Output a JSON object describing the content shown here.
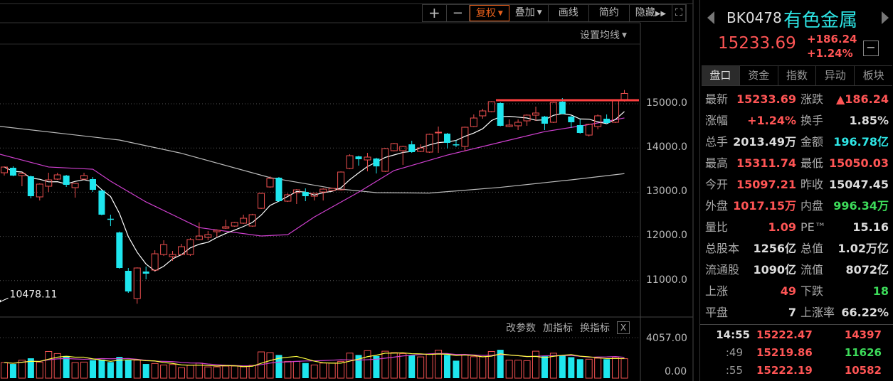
{
  "toolbar": {
    "zoom_in": "+",
    "zoom_out": "−",
    "fuquan": "复权",
    "overlay": "叠加",
    "draw": "画线",
    "simple": "简约",
    "hide": "隐藏",
    "fullscreen_icon": "expand-icon"
  },
  "ma_settings": "设置均线",
  "indicator_bar": {
    "edit_params": "改参数",
    "add_indicator": "加指标",
    "switch_indicator": "换指标",
    "close": "X"
  },
  "price_axis": [
    "15000.0",
    "14000.0",
    "13000.0",
    "12000.0",
    "11000.0"
  ],
  "volume_axis": [
    "4057.00",
    "0.00"
  ],
  "low_annotation": "10478.11",
  "colors": {
    "up": "#f05050",
    "down": "#1ee6ee",
    "ma5": "#ffffff",
    "ma20": "#d040d0",
    "ma60": "#bbbbbb",
    "vol_ma5": "#ffff40",
    "vol_ma10": "#d040d0",
    "drawn_line": "#ff4040"
  },
  "chart_data": {
    "type": "candlestick",
    "y_ticks": [
      15000,
      14000,
      13000,
      12000,
      11000
    ],
    "ylim": [
      10400,
      15450
    ],
    "volume_ylim": [
      0,
      4057
    ],
    "drawn_horizontal_line": 15080,
    "low_label": 10478.11,
    "ohlc": [
      [
        13440,
        13585,
        13376,
        13569
      ],
      [
        13553,
        13585,
        13360,
        13376
      ],
      [
        13376,
        13456,
        13135,
        13424
      ],
      [
        13360,
        13376,
        12861,
        12910
      ],
      [
        12894,
        13199,
        12813,
        13183
      ],
      [
        13135,
        13440,
        13006,
        13279
      ],
      [
        13296,
        13440,
        13279,
        13392
      ],
      [
        13376,
        13392,
        13119,
        13167
      ],
      [
        13103,
        13215,
        12877,
        13199
      ],
      [
        13296,
        13440,
        13279,
        13376
      ],
      [
        13296,
        13344,
        13006,
        13054
      ],
      [
        13038,
        13054,
        12476,
        12492
      ],
      [
        12400,
        12492,
        12234,
        12395
      ],
      [
        12090,
        12110,
        11270,
        11286
      ],
      [
        11222,
        11286,
        10723,
        10755
      ],
      [
        10595,
        11300,
        10478,
        11286
      ],
      [
        11206,
        11318,
        11029,
        11158
      ],
      [
        11238,
        11687,
        11220,
        11607
      ],
      [
        11591,
        11913,
        11559,
        11816
      ],
      [
        11543,
        11671,
        11446,
        11591
      ],
      [
        11591,
        11832,
        11570,
        11768
      ],
      [
        11591,
        11961,
        11559,
        11929
      ],
      [
        11929,
        12315,
        11913,
        12009
      ],
      [
        11977,
        12122,
        11913,
        12041
      ],
      [
        12106,
        12160,
        11993,
        12138
      ],
      [
        12186,
        12379,
        12170,
        12218
      ],
      [
        12234,
        12330,
        12218,
        12315
      ],
      [
        12299,
        12492,
        12283,
        12411
      ],
      [
        12234,
        12510,
        12218,
        12492
      ],
      [
        12636,
        12990,
        12620,
        12974
      ],
      [
        13119,
        13360,
        13100,
        13312
      ],
      [
        13328,
        13344,
        12780,
        12797
      ],
      [
        12797,
        12974,
        12780,
        12942
      ],
      [
        12990,
        13070,
        12733,
        13054
      ],
      [
        13006,
        13087,
        12797,
        12910
      ],
      [
        12910,
        12990,
        12813,
        12974
      ],
      [
        13006,
        13090,
        12813,
        13070
      ],
      [
        13038,
        13103,
        13020,
        13087
      ],
      [
        13054,
        13470,
        13040,
        13456
      ],
      [
        13537,
        13858,
        13520,
        13826
      ],
      [
        13810,
        13826,
        13601,
        13746
      ],
      [
        13730,
        13890,
        13472,
        13794
      ],
      [
        13762,
        13780,
        13424,
        13585
      ],
      [
        13472,
        14003,
        13456,
        13987
      ],
      [
        13939,
        14116,
        13923,
        14100
      ],
      [
        13939,
        14051,
        13617,
        14035
      ],
      [
        14083,
        14164,
        13890,
        13907
      ],
      [
        13923,
        14083,
        13907,
        14003
      ],
      [
        13907,
        14325,
        13890,
        14309
      ],
      [
        14341,
        14485,
        13890,
        14357
      ],
      [
        14325,
        14341,
        13987,
        14116
      ],
      [
        14083,
        14180,
        14019,
        14067
      ],
      [
        14035,
        14485,
        13923,
        14469
      ],
      [
        14485,
        14759,
        14469,
        14678
      ],
      [
        14727,
        14887,
        14662,
        14839
      ],
      [
        14823,
        15060,
        14807,
        15048
      ],
      [
        15016,
        15032,
        14490,
        14502
      ],
      [
        14485,
        14646,
        14470,
        14518
      ],
      [
        14502,
        14646,
        14405,
        14582
      ],
      [
        14614,
        14760,
        14502,
        14743
      ],
      [
        14743,
        14936,
        14614,
        14791
      ],
      [
        14711,
        14727,
        14405,
        14550
      ],
      [
        14582,
        15048,
        14566,
        15032
      ],
      [
        15048,
        15129,
        14760,
        14775
      ],
      [
        14711,
        14730,
        14453,
        14582
      ],
      [
        14518,
        14646,
        14325,
        14341
      ],
      [
        14292,
        14550,
        14260,
        14534
      ],
      [
        14485,
        14759,
        14421,
        14727
      ],
      [
        14662,
        14759,
        14550,
        14566
      ],
      [
        14582,
        15080,
        14566,
        15064
      ],
      [
        15097.21,
        15311.74,
        15050.03,
        15233.69
      ]
    ],
    "volume": [
      1560,
      1420,
      1800,
      1990,
      1610,
      2670,
      2460,
      2220,
      1560,
      1610,
      1800,
      1850,
      1610,
      2130,
      1800,
      1800,
      1420,
      1470,
      1320,
      1370,
      1040,
      1280,
      1510,
      1130,
      1130,
      1210,
      1210,
      1130,
      1280,
      2630,
      2560,
      2320,
      1680,
      1680,
      1510,
      1320,
      1510,
      1510,
      1680,
      2510,
      2320,
      2750,
      2220,
      2700,
      2560,
      2460,
      2320,
      2130,
      2390,
      2800,
      2320,
      1750,
      2320,
      2150,
      2150,
      2670,
      2840,
      1800,
      1800,
      1750,
      2700,
      2200,
      2500,
      2300,
      2100,
      1900,
      1900,
      2000,
      1900,
      2100,
      1950
    ],
    "ma20": [
      [
        0,
        13860
      ],
      [
        5,
        13570
      ],
      [
        10,
        13520
      ],
      [
        12,
        13250
      ],
      [
        16,
        12780
      ],
      [
        22,
        12200
      ],
      [
        29,
        12010
      ],
      [
        32,
        12040
      ],
      [
        35,
        12440
      ],
      [
        40,
        13000
      ],
      [
        44,
        13490
      ],
      [
        50,
        13840
      ],
      [
        56,
        14130
      ],
      [
        61,
        14370
      ],
      [
        66,
        14530
      ],
      [
        70,
        14680
      ]
    ],
    "ma60": [
      [
        0,
        14490
      ],
      [
        13,
        14180
      ],
      [
        20,
        13880
      ],
      [
        30,
        13330
      ],
      [
        37,
        13090
      ],
      [
        42,
        12990
      ],
      [
        48,
        12980
      ],
      [
        56,
        13110
      ],
      [
        64,
        13280
      ],
      [
        70,
        13420
      ]
    ]
  },
  "panel": {
    "code": "BK0478",
    "name": "有色金属",
    "price": "15233.69",
    "change": "+186.24",
    "change_pct": "+1.24%",
    "minus": "−",
    "tabs": [
      "盘口",
      "资金",
      "指数",
      "异动",
      "板块"
    ],
    "rows": [
      {
        "l1": "最新",
        "v1": "15233.69",
        "c1": "red",
        "l2": "涨跌",
        "v2": "▲186.24",
        "c2": "red"
      },
      {
        "l1": "涨幅",
        "v1": "+1.24%",
        "c1": "red",
        "l2": "换手",
        "v2": "1.85%",
        "c2": "wh"
      },
      {
        "l1": "总手",
        "v1": "2013.49万",
        "c1": "wh",
        "l2": "金额",
        "v2": "196.78亿",
        "c2": "cy"
      },
      {
        "l1": "最高",
        "v1": "15311.74",
        "c1": "red",
        "l2": "最低",
        "v2": "15050.03",
        "c2": "red"
      },
      {
        "l1": "今开",
        "v1": "15097.21",
        "c1": "red",
        "l2": "昨收",
        "v2": "15047.45",
        "c2": "wh"
      },
      {
        "l1": "外盘",
        "v1": "1017.15万",
        "c1": "red",
        "l2": "内盘",
        "v2": "996.34万",
        "c2": "grn"
      },
      {
        "l1": "量比",
        "v1": "1.09",
        "c1": "red",
        "l2": "PE™",
        "v2": "15.16",
        "c2": "wh"
      },
      {
        "l1": "总股本",
        "v1": "1256亿",
        "c1": "wh",
        "l2": "总值",
        "v2": "1.02万亿",
        "c2": "wh"
      },
      {
        "l1": "流通股",
        "v1": "1090亿",
        "c1": "wh",
        "l2": "流值",
        "v2": "8072亿",
        "c2": "wh"
      },
      {
        "l1": "上涨",
        "v1": "49",
        "c1": "red",
        "l2": "下跌",
        "v2": "18",
        "c2": "grn"
      },
      {
        "l1": "平盘",
        "v1": "7",
        "c1": "wh",
        "l2": "上涨率",
        "v2": "66.22%",
        "c2": "wh"
      }
    ],
    "ticks": [
      {
        "time": "14:55",
        "price": "15222.47",
        "vol": "14397",
        "vc": "red"
      },
      {
        "time": ":49",
        "price": "15219.86",
        "vol": "11626",
        "vc": "grn"
      },
      {
        "time": ":55",
        "price": "15222.19",
        "vol": "10582",
        "vc": "red"
      }
    ]
  }
}
